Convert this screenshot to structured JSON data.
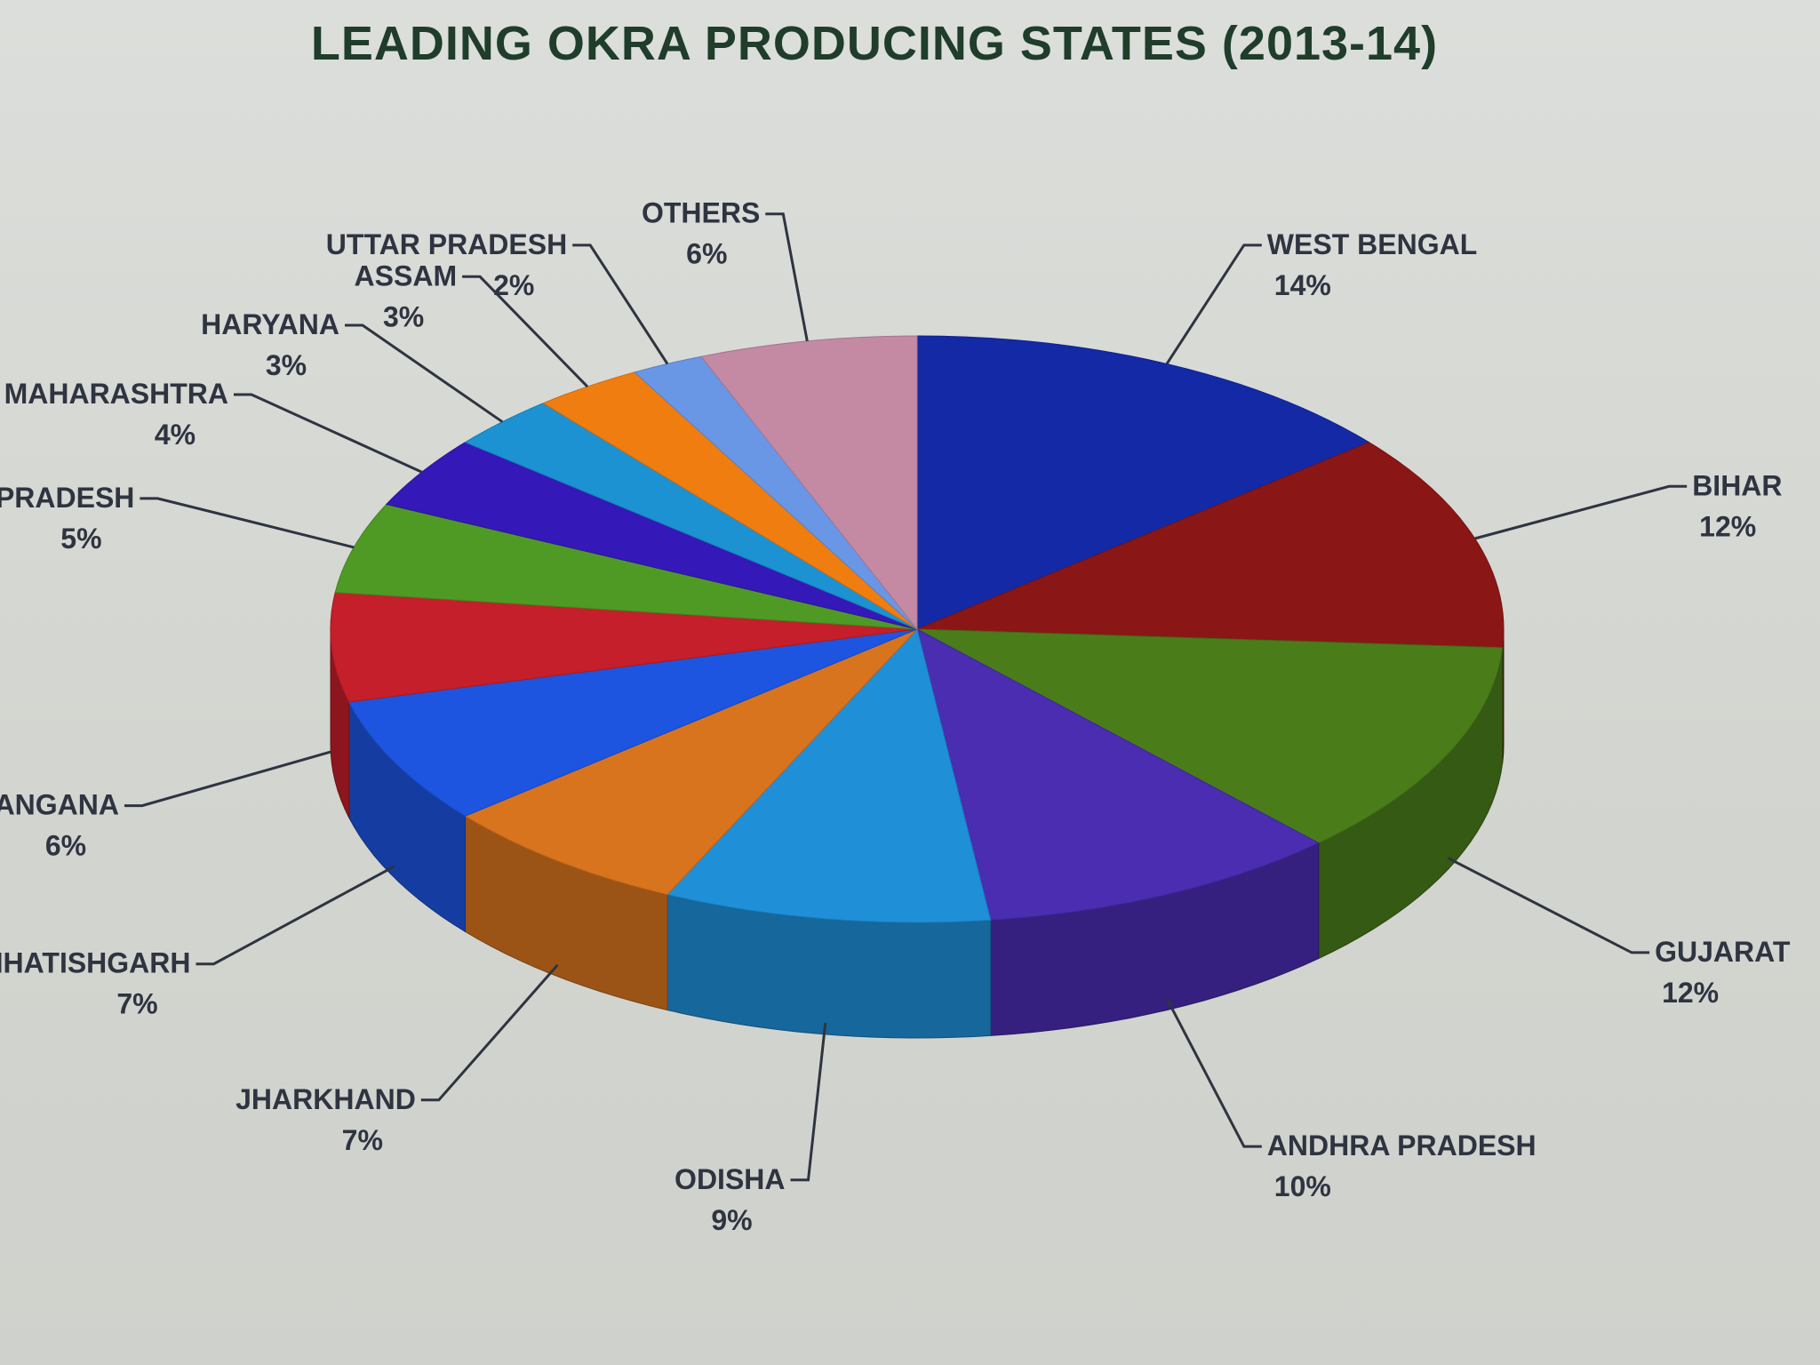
{
  "chart_data": {
    "type": "pie",
    "title": "LEADING OKRA PRODUCING STATES (2013-14)",
    "slices": [
      {
        "label": "WEST BENGAL",
        "value": 14,
        "value_label": "14%",
        "color": "#1329a6"
      },
      {
        "label": "BIHAR",
        "value": 12,
        "value_label": "12%",
        "color": "#8a1616"
      },
      {
        "label": "GUJARAT",
        "value": 12,
        "value_label": "12%",
        "color": "#4a7d1a"
      },
      {
        "label": "ANDHRA PRADESH",
        "value": 10,
        "value_label": "10%",
        "color": "#4a2db0"
      },
      {
        "label": "ODISHA",
        "value": 9,
        "value_label": "9%",
        "color": "#1f8fd8"
      },
      {
        "label": "JHARKHAND",
        "value": 7,
        "value_label": "7%",
        "color": "#d9741e"
      },
      {
        "label": "CHHATISHGARH",
        "value": 7,
        "value_label": "7%",
        "color": "#1d55e0"
      },
      {
        "label": "TELANGANA",
        "value": 6,
        "value_label": "6%",
        "color": "#c41f2a"
      },
      {
        "label": "MADHYA PRADESH",
        "value": 5,
        "value_label": "5%",
        "color": "#4f9a24"
      },
      {
        "label": "MAHARASHTRA",
        "value": 4,
        "value_label": "4%",
        "color": "#3418b8"
      },
      {
        "label": "HARYANA",
        "value": 3,
        "value_label": "3%",
        "color": "#1c92d2"
      },
      {
        "label": "ASSAM",
        "value": 3,
        "value_label": "3%",
        "color": "#f07d10"
      },
      {
        "label": "UTTAR PRADESH",
        "value": 2,
        "value_label": "2%",
        "color": "#6a96e6"
      },
      {
        "label": "OTHERS",
        "value": 6,
        "value_label": "6%",
        "color": "#c48aa4"
      }
    ]
  }
}
